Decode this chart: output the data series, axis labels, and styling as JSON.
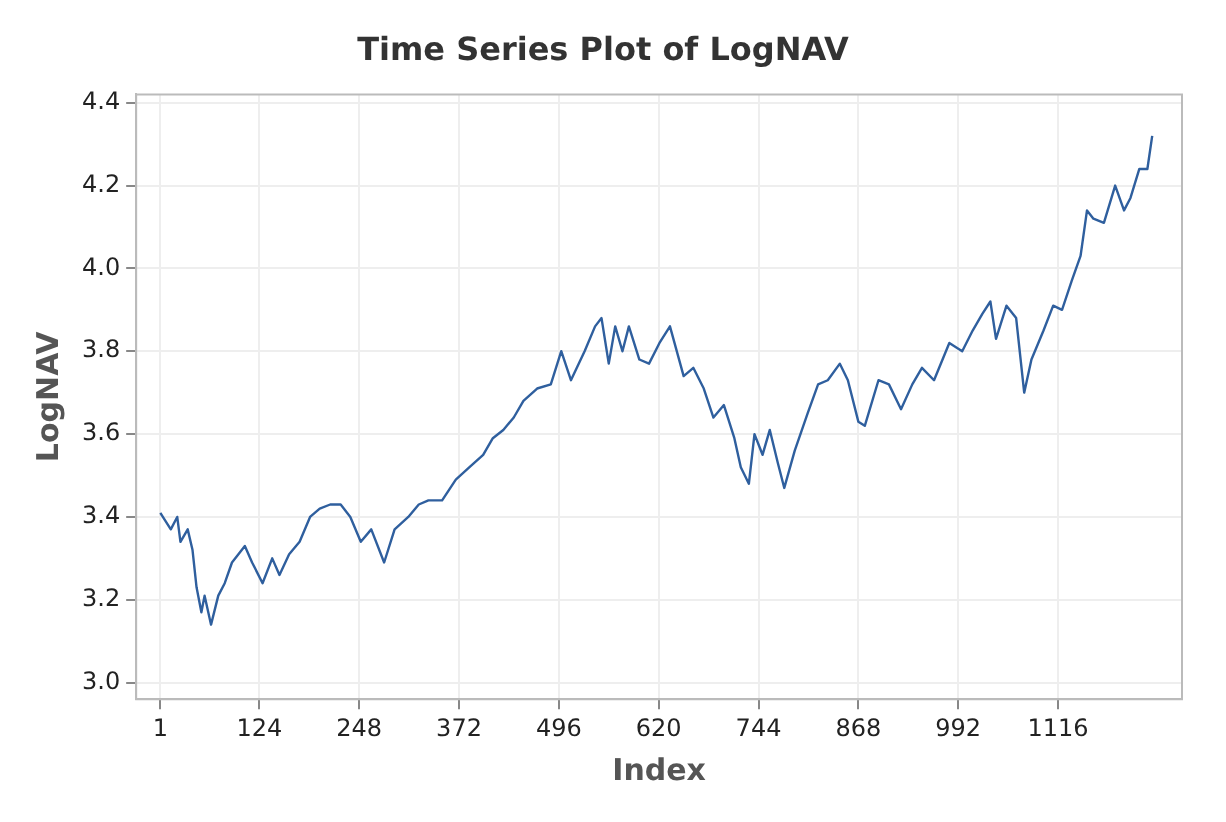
{
  "chart_data": {
    "type": "line",
    "title": "Time Series Plot of LogNAV",
    "xlabel": "Index",
    "ylabel": "LogNAV",
    "x": [
      1,
      14,
      22,
      26,
      35,
      41,
      46,
      52,
      56,
      64,
      73,
      81,
      90,
      98,
      106,
      115,
      128,
      140,
      149,
      161,
      174,
      187,
      199,
      212,
      225,
      237,
      250,
      263,
      279,
      292,
      309,
      322,
      334,
      351,
      368,
      385,
      402,
      414,
      427,
      440,
      452,
      469,
      486,
      499,
      511,
      528,
      541,
      549,
      558,
      566,
      575,
      583,
      596,
      608,
      621,
      634,
      651,
      663,
      676,
      688,
      701,
      714,
      722,
      732,
      739,
      749,
      758,
      768,
      776,
      789,
      805,
      818,
      830,
      845,
      855,
      868,
      876,
      893,
      906,
      921,
      935,
      947,
      962,
      981,
      997,
      1010,
      1022,
      1032,
      1039,
      1052,
      1064,
      1074,
      1083,
      1098,
      1110,
      1121,
      1133,
      1144,
      1152,
      1160,
      1173,
      1187,
      1198,
      1206,
      1217,
      1227,
      1233
    ],
    "series": [
      {
        "color": "#2f5f9e",
        "values": [
          3.41,
          3.37,
          3.4,
          3.34,
          3.37,
          3.32,
          3.23,
          3.17,
          3.21,
          3.14,
          3.21,
          3.24,
          3.29,
          3.31,
          3.33,
          3.29,
          3.24,
          3.3,
          3.26,
          3.31,
          3.34,
          3.4,
          3.42,
          3.43,
          3.43,
          3.4,
          3.34,
          3.37,
          3.29,
          3.37,
          3.4,
          3.43,
          3.44,
          3.44,
          3.49,
          3.52,
          3.55,
          3.59,
          3.61,
          3.64,
          3.68,
          3.71,
          3.72,
          3.8,
          3.73,
          3.8,
          3.86,
          3.88,
          3.77,
          3.86,
          3.8,
          3.86,
          3.78,
          3.77,
          3.82,
          3.86,
          3.74,
          3.76,
          3.71,
          3.64,
          3.67,
          3.59,
          3.52,
          3.48,
          3.6,
          3.55,
          3.61,
          3.53,
          3.47,
          3.56,
          3.65,
          3.72,
          3.73,
          3.77,
          3.73,
          3.63,
          3.62,
          3.73,
          3.72,
          3.66,
          3.72,
          3.76,
          3.73,
          3.82,
          3.8,
          3.85,
          3.89,
          3.92,
          3.83,
          3.91,
          3.88,
          3.7,
          3.78,
          3.85,
          3.91,
          3.9,
          3.97,
          4.03,
          4.14,
          4.12,
          4.11,
          4.2,
          4.14,
          4.17,
          4.24,
          4.24,
          4.32
        ]
      }
    ],
    "xlim": [
      -29,
      1270
    ],
    "xticks": [
      1,
      124,
      248,
      372,
      496,
      620,
      744,
      868,
      992,
      1116
    ],
    "ylim": [
      2.96,
      4.42
    ],
    "yticks": [
      {
        "value": 3,
        "label": "3.0"
      },
      3.2,
      3.4,
      3.6,
      3.8,
      {
        "value": 4,
        "label": "4.0"
      },
      4.2,
      4.4
    ],
    "grid": true,
    "legend": false,
    "marker": "none",
    "line_style": "solid"
  }
}
